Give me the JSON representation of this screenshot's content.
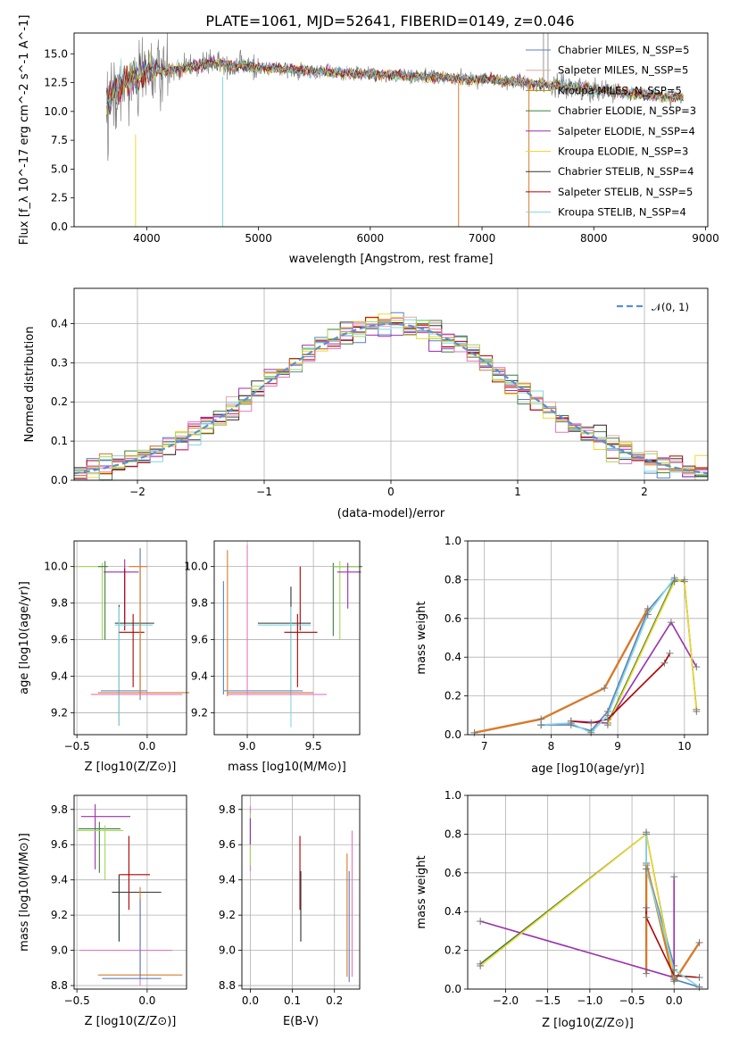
{
  "chart_data": [
    {
      "type": "line",
      "panel": "spectrum",
      "title": "PLATE=1061, MJD=52641, FIBERID=0149, z=0.046",
      "xlabel": "wavelength [Angstrom, rest frame]",
      "ylabel": "Flux [f_λ 10^-17 erg cm^-2 s^-1 A^-1]",
      "xlim": [
        3350,
        9020
      ],
      "ylim": [
        0,
        16.8
      ],
      "xticks": [
        "4000",
        "5000",
        "6000",
        "7000",
        "8000",
        "9000"
      ],
      "yticks": [
        "0.0",
        "2.5",
        "5.0",
        "7.5",
        "10.0",
        "12.5",
        "15.0"
      ],
      "legend_position": "right",
      "series": [
        {
          "name": "Chabrier MILES, N_SSP=5",
          "color": "#5b7fc0"
        },
        {
          "name": "Salpeter MILES, N_SSP=5",
          "color": "#e9a3a6"
        },
        {
          "name": "Kroupa MILES, N_SSP=5",
          "color": "#a88a00"
        },
        {
          "name": "Chabrier ELODIE, N_SSP=3",
          "color": "#3e7d3e"
        },
        {
          "name": "Salpeter ELODIE, N_SSP=4",
          "color": "#9b2fae"
        },
        {
          "name": "Kroupa ELODIE, N_SSP=3",
          "color": "#f0d830"
        },
        {
          "name": "Chabrier STELIB, N_SSP=4",
          "color": "#333333"
        },
        {
          "name": "Salpeter STELIB, N_SSP=5",
          "color": "#b00000"
        },
        {
          "name": "Kroupa STELIB, N_SSP=4",
          "color": "#7fd8e0"
        }
      ],
      "data_color": "#808080",
      "model_color": "#d77b2b",
      "continuum_points": [
        [
          3650,
          11
        ],
        [
          3800,
          12.6
        ],
        [
          4000,
          13.4
        ],
        [
          4300,
          13.8
        ],
        [
          4600,
          14.2
        ],
        [
          5000,
          13.8
        ],
        [
          5500,
          13.5
        ],
        [
          6000,
          13.2
        ],
        [
          6500,
          13.0
        ],
        [
          7000,
          12.8
        ],
        [
          7500,
          12.4
        ],
        [
          8000,
          11.9
        ],
        [
          8500,
          11.4
        ],
        [
          8800,
          11.2
        ]
      ]
    },
    {
      "type": "line",
      "panel": "residual-histogram",
      "xlabel": "(data-model)/error",
      "ylabel": "Normed distribution",
      "xlim": [
        -2.5,
        2.5
      ],
      "ylim": [
        0,
        0.49
      ],
      "xticks": [
        "−2",
        "−1",
        "0",
        "1",
        "2"
      ],
      "yticks": [
        "0.0",
        "0.1",
        "0.2",
        "0.3",
        "0.4"
      ],
      "grid": true,
      "legend_position": "top-right",
      "reference": {
        "name": "𝒩(0, 1)",
        "color": "#5b8fd6"
      },
      "bin_width": 0.1,
      "bin_start": -2.5
    },
    {
      "type": "scatter",
      "panel": "age-vs-Z",
      "xlabel": "Z [log10(Z/Z⊙)]",
      "ylabel": "age [log10(age/yr)]",
      "xlim": [
        -0.52,
        0.28
      ],
      "ylim": [
        9.08,
        10.14
      ],
      "xticks": [
        "−0.5",
        "0.0"
      ],
      "yticks": [
        "9.2",
        "9.4",
        "9.6",
        "9.8",
        "10.0"
      ],
      "grid": true
    },
    {
      "type": "scatter",
      "panel": "age-vs-mass",
      "xlabel": "mass [log10(M/M⊙)]",
      "ylabel": "",
      "xlim": [
        8.75,
        9.85
      ],
      "ylim": [
        9.08,
        10.14
      ],
      "xticks": [
        "9.0",
        "9.5"
      ],
      "yticks": [
        "9.2",
        "9.4",
        "9.6",
        "9.8",
        "10.0"
      ],
      "grid": true
    },
    {
      "type": "line",
      "panel": "mass-weight-vs-age",
      "xlabel": "age [log10(age/yr)]",
      "ylabel": "mass weight",
      "xlim": [
        6.75,
        10.35
      ],
      "ylim": [
        0,
        1.0
      ],
      "xticks": [
        "7",
        "8",
        "9",
        "10"
      ],
      "yticks": [
        "0.0",
        "0.2",
        "0.4",
        "0.6",
        "0.8",
        "1.0"
      ],
      "grid": true,
      "series": [
        {
          "color": "#5b7fc0",
          "x": [
            7.85,
            8.3,
            8.6,
            8.85,
            9.45,
            9.85
          ],
          "y": [
            0.05,
            0.05,
            0.02,
            0.12,
            0.64,
            0.8
          ]
        },
        {
          "color": "#d77b2b",
          "x": [
            6.85,
            7.85,
            8.8,
            9.45
          ],
          "y": [
            0.01,
            0.08,
            0.24,
            0.65
          ]
        },
        {
          "color": "#3e7d3e",
          "x": [
            8.85,
            9.85,
            10.0,
            10.18
          ],
          "y": [
            0.06,
            0.8,
            0.79,
            0.13
          ]
        },
        {
          "color": "#9b2fae",
          "x": [
            8.3,
            8.85,
            9.8,
            10.18
          ],
          "y": [
            0.07,
            0.06,
            0.58,
            0.35
          ]
        },
        {
          "color": "#f0d830",
          "x": [
            8.85,
            9.85,
            10.0,
            10.18
          ],
          "y": [
            0.05,
            0.79,
            0.8,
            0.12
          ]
        },
        {
          "color": "#b00000",
          "x": [
            8.3,
            8.6,
            8.85,
            9.7,
            9.78
          ],
          "y": [
            0.07,
            0.06,
            0.08,
            0.37,
            0.42
          ]
        },
        {
          "color": "#7fd8e0",
          "x": [
            7.85,
            8.3,
            8.6,
            8.85,
            9.45,
            9.85
          ],
          "y": [
            0.05,
            0.06,
            0.01,
            0.1,
            0.62,
            0.81
          ]
        }
      ]
    },
    {
      "type": "scatter",
      "panel": "mass-vs-Z",
      "xlabel": "Z [log10(Z/Z⊙)]",
      "ylabel": "mass [log10(M/M⊙)]",
      "xlim": [
        -0.52,
        0.28
      ],
      "ylim": [
        8.78,
        9.88
      ],
      "xticks": [
        "−0.5",
        "0.0"
      ],
      "yticks": [
        "8.8",
        "9.0",
        "9.2",
        "9.4",
        "9.6",
        "9.8"
      ],
      "grid": true
    },
    {
      "type": "scatter",
      "panel": "mass-vs-EBV",
      "xlabel": "E(B-V)",
      "ylabel": "",
      "xlim": [
        -0.02,
        0.26
      ],
      "ylim": [
        8.78,
        9.88
      ],
      "xticks": [
        "0.0",
        "0.1",
        "0.2"
      ],
      "yticks": [
        "8.8",
        "9.0",
        "9.2",
        "9.4",
        "9.6",
        "9.8"
      ],
      "grid": true
    },
    {
      "type": "line",
      "panel": "mass-weight-vs-Z",
      "xlabel": "Z [log10(Z/Z⊙)]",
      "ylabel": "mass weight",
      "xlim": [
        -2.45,
        0.4
      ],
      "ylim": [
        0,
        1.0
      ],
      "xticks": [
        "−2.0",
        "−1.5",
        "−1.0",
        "−0.5",
        "0.0"
      ],
      "yticks": [
        "0.0",
        "0.2",
        "0.4",
        "0.6",
        "0.8",
        "1.0"
      ],
      "grid": true,
      "series": [
        {
          "color": "#5b7fc0",
          "x": [
            -0.33,
            -0.33,
            0.0,
            0.0,
            0.3
          ],
          "y": [
            0.8,
            0.64,
            0.12,
            0.05,
            0.01
          ]
        },
        {
          "color": "#d77b2b",
          "x": [
            -0.33,
            -0.33,
            0.0,
            0.3
          ],
          "y": [
            0.08,
            0.65,
            0.04,
            0.24
          ]
        },
        {
          "color": "#3e7d3e",
          "x": [
            -2.3,
            -0.33,
            0.0
          ],
          "y": [
            0.13,
            0.8,
            0.06
          ]
        },
        {
          "color": "#9b2fae",
          "x": [
            -2.3,
            0.0,
            0.0
          ],
          "y": [
            0.35,
            0.06,
            0.58
          ]
        },
        {
          "color": "#f0d830",
          "x": [
            -2.3,
            -0.33,
            0.0
          ],
          "y": [
            0.12,
            0.8,
            0.05
          ]
        },
        {
          "color": "#b00000",
          "x": [
            -0.33,
            -0.33,
            0.0,
            0.3
          ],
          "y": [
            0.42,
            0.37,
            0.07,
            0.06
          ]
        },
        {
          "color": "#7fd8e0",
          "x": [
            -0.33,
            -0.33,
            0.0,
            0.3
          ],
          "y": [
            0.81,
            0.62,
            0.1,
            0.01
          ]
        }
      ]
    }
  ]
}
